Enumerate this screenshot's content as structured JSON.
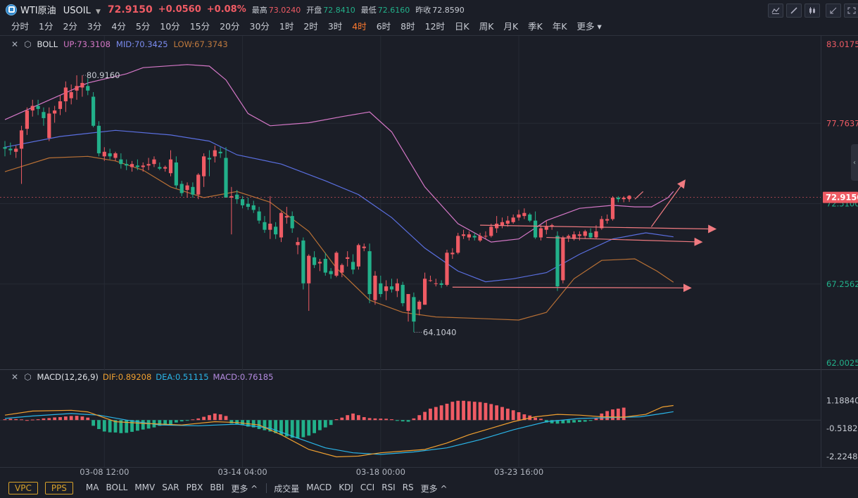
{
  "header": {
    "symbol_name": "WTI原油",
    "symbol_code": "USOIL",
    "price": "72.9150",
    "change": "+0.0560",
    "change_pct": "+0.08%",
    "stats": [
      {
        "label": "最高",
        "value": "73.0240",
        "color": "#ef5b64"
      },
      {
        "label": "开盘",
        "value": "72.8410",
        "color": "#22b08a"
      },
      {
        "label": "最低",
        "value": "72.6160",
        "color": "#22b08a"
      },
      {
        "label": "昨收",
        "value": "72.8590",
        "color": "#c8ccd4"
      }
    ]
  },
  "toolbar_icons": [
    "indicator-icon",
    "draw-icon",
    "candle-type-icon",
    "collapse-icon",
    "fullscreen-icon"
  ],
  "timeframes": [
    "分时",
    "1分",
    "2分",
    "3分",
    "4分",
    "5分",
    "10分",
    "15分",
    "20分",
    "30分",
    "1时",
    "2时",
    "3时",
    "4时",
    "6时",
    "8时",
    "12时",
    "日K",
    "周K",
    "月K",
    "季K",
    "年K",
    "更多"
  ],
  "active_timeframe": "4时",
  "boll": {
    "name": "BOLL",
    "up": "UP:73.3108",
    "mid": "MID:70.3425",
    "low": "LOW:67.3743",
    "colors": {
      "up": "#d678c8",
      "mid": "#5a6fe0",
      "low": "#b87035"
    }
  },
  "macd": {
    "name": "MACD(12,26,9)",
    "dif": "DIF:0.89208",
    "dea": "DEA:0.51115",
    "macd": "MACD:0.76185",
    "colors": {
      "dif": "#f0a030",
      "dea": "#2ab5e8",
      "macd": "#b48be0"
    }
  },
  "price_axis": [
    "83.0175",
    "77.7637",
    "72.5100",
    "67.2562",
    "62.0025"
  ],
  "current_price_label": "72.9150",
  "macd_axis": [
    "1.18840",
    "-0.51823",
    "-2.22486"
  ],
  "time_axis": [
    "03-08 12:00",
    "03-14 04:00",
    "03-18 00:00",
    "03-23 16:00"
  ],
  "annotations": {
    "high": "80.9160",
    "low": "64.1040"
  },
  "bottom": {
    "pills": [
      "VPC",
      "PPS"
    ],
    "main_indicators": [
      "MA",
      "BOLL",
      "MMV",
      "SAR",
      "PBX",
      "BBI",
      "更多 ^"
    ],
    "sub_indicators": [
      "成交量",
      "MACD",
      "KDJ",
      "CCI",
      "RSI",
      "RS",
      "更多 ^"
    ]
  },
  "chart_data": {
    "type": "candlestick",
    "ylim": [
      62.0025,
      83.0175
    ],
    "candles": [
      [
        76.2,
        76.6,
        75.6,
        76.1
      ],
      [
        76.1,
        76.5,
        75.7,
        76.0
      ],
      [
        75.9,
        76.3,
        75.5,
        76.1
      ],
      [
        76.1,
        77.6,
        73.8,
        77.3
      ],
      [
        77.4,
        78.8,
        77.0,
        78.6
      ],
      [
        78.6,
        79.3,
        78.2,
        78.9
      ],
      [
        78.9,
        79.3,
        78.3,
        78.7
      ],
      [
        78.5,
        78.8,
        77.6,
        78.1
      ],
      [
        76.8,
        78.8,
        76.6,
        78.4
      ],
      [
        78.4,
        78.9,
        77.8,
        78.6
      ],
      [
        78.7,
        79.6,
        78.3,
        79.2
      ],
      [
        79.2,
        80.5,
        78.5,
        80.1
      ],
      [
        79.4,
        80.3,
        79.0,
        79.8
      ],
      [
        79.9,
        80.9,
        79.3,
        80.2
      ],
      [
        80.1,
        80.9,
        79.5,
        80.4
      ],
      [
        80.2,
        80.7,
        79.6,
        79.9
      ],
      [
        79.5,
        79.8,
        77.5,
        77.6
      ],
      [
        77.6,
        77.9,
        75.6,
        75.8
      ],
      [
        75.6,
        76.2,
        75.3,
        75.9
      ],
      [
        75.8,
        76.1,
        75.4,
        75.6
      ],
      [
        75.5,
        75.9,
        75.3,
        75.8
      ],
      [
        75.4,
        75.8,
        74.8,
        75.1
      ],
      [
        75.1,
        75.4,
        74.7,
        75.0
      ],
      [
        74.9,
        75.3,
        74.6,
        75.1
      ],
      [
        75.0,
        75.4,
        74.7,
        74.9
      ],
      [
        74.9,
        75.2,
        74.6,
        75.0
      ],
      [
        75.0,
        75.5,
        74.7,
        75.1
      ],
      [
        75.1,
        75.6,
        74.9,
        75.4
      ],
      [
        74.9,
        75.2,
        74.7,
        74.8
      ],
      [
        74.8,
        75.0,
        74.6,
        74.9
      ],
      [
        74.5,
        76.0,
        74.3,
        75.4
      ],
      [
        75.2,
        75.6,
        73.5,
        73.7
      ],
      [
        73.8,
        74.0,
        73.0,
        73.2
      ],
      [
        73.4,
        73.9,
        72.9,
        73.7
      ],
      [
        73.6,
        73.9,
        72.9,
        73.1
      ],
      [
        73.1,
        74.5,
        72.8,
        74.4
      ],
      [
        74.3,
        75.8,
        73.6,
        75.6
      ],
      [
        75.5,
        76.0,
        74.3,
        75.4
      ],
      [
        75.6,
        76.3,
        75.2,
        76.0
      ],
      [
        75.9,
        76.2,
        75.5,
        75.8
      ],
      [
        75.5,
        76.2,
        72.9,
        72.9
      ],
      [
        72.9,
        73.6,
        70.5,
        73.0
      ],
      [
        73.1,
        73.4,
        72.5,
        72.8
      ],
      [
        72.8,
        73.0,
        72.2,
        72.4
      ],
      [
        72.5,
        72.9,
        72.1,
        72.3
      ],
      [
        72.4,
        72.7,
        71.9,
        72.1
      ],
      [
        72.0,
        72.3,
        71.2,
        71.4
      ],
      [
        71.3,
        71.7,
        70.6,
        70.8
      ],
      [
        70.8,
        73.0,
        70.2,
        71.2
      ],
      [
        71.0,
        71.3,
        70.2,
        70.5
      ],
      [
        70.3,
        72.0,
        70.0,
        71.9
      ],
      [
        71.6,
        72.3,
        71.2,
        71.7
      ],
      [
        71.7,
        72.0,
        70.6,
        70.9
      ],
      [
        69.8,
        70.3,
        69.2,
        70.0
      ],
      [
        70.1,
        70.3,
        66.9,
        67.3
      ],
      [
        67.3,
        69.2,
        65.5,
        69.1
      ],
      [
        69.0,
        69.4,
        68.3,
        68.5
      ],
      [
        68.6,
        68.9,
        68.1,
        68.7
      ],
      [
        68.9,
        69.3,
        67.8,
        68.0
      ],
      [
        68.1,
        68.3,
        67.6,
        67.9
      ],
      [
        67.8,
        69.4,
        67.7,
        69.3
      ],
      [
        68.0,
        68.6,
        67.7,
        68.5
      ],
      [
        68.9,
        69.4,
        68.4,
        69.0
      ],
      [
        68.7,
        69.2,
        67.9,
        68.2
      ],
      [
        68.4,
        69.9,
        68.2,
        69.8
      ],
      [
        69.6,
        69.9,
        69.4,
        69.7
      ],
      [
        69.4,
        69.9,
        66.0,
        66.6
      ],
      [
        66.2,
        68.1,
        65.9,
        67.8
      ],
      [
        67.3,
        67.8,
        66.4,
        66.6
      ],
      [
        66.8,
        67.5,
        66.2,
        67.1
      ],
      [
        67.1,
        67.6,
        66.7,
        66.9
      ],
      [
        66.8,
        67.6,
        66.4,
        67.3
      ],
      [
        67.2,
        67.4,
        65.8,
        66.0
      ],
      [
        65.5,
        66.6,
        64.8,
        66.6
      ],
      [
        66.4,
        66.7,
        64.1,
        64.8
      ],
      [
        65.6,
        66.2,
        65.2,
        66.1
      ],
      [
        65.9,
        68.0,
        65.9,
        67.6
      ],
      [
        67.5,
        67.8,
        67.4,
        67.5
      ],
      [
        67.3,
        67.6,
        67.1,
        67.3
      ],
      [
        67.3,
        67.5,
        67.0,
        67.2
      ],
      [
        67.2,
        69.5,
        67.1,
        69.3
      ],
      [
        69.2,
        69.6,
        68.9,
        69.3
      ],
      [
        69.3,
        70.6,
        69.2,
        70.4
      ],
      [
        70.4,
        70.8,
        70.2,
        70.5
      ],
      [
        70.3,
        70.7,
        70.1,
        70.5
      ],
      [
        70.4,
        70.6,
        70.1,
        70.3
      ],
      [
        70.1,
        70.6,
        70.0,
        70.4
      ],
      [
        70.4,
        70.7,
        70.2,
        70.4
      ],
      [
        70.4,
        71.2,
        70.3,
        71.0
      ],
      [
        70.9,
        71.7,
        70.6,
        71.2
      ],
      [
        71.1,
        71.6,
        70.9,
        71.3
      ],
      [
        71.2,
        71.7,
        71.0,
        71.4
      ],
      [
        71.3,
        71.8,
        71.2,
        71.6
      ],
      [
        71.6,
        72.1,
        71.4,
        71.8
      ],
      [
        71.7,
        72.2,
        71.5,
        71.9
      ],
      [
        71.8,
        71.9,
        71.3,
        71.4
      ],
      [
        71.4,
        72.0,
        70.2,
        70.3
      ],
      [
        70.3,
        71.1,
        70.1,
        70.9
      ],
      [
        70.8,
        71.4,
        70.5,
        71.0
      ],
      [
        71.0,
        71.2,
        70.8,
        71.1
      ],
      [
        70.4,
        70.7,
        66.8,
        67.1
      ],
      [
        67.5,
        70.4,
        67.3,
        70.3
      ],
      [
        70.3,
        70.5,
        70.0,
        70.4
      ],
      [
        70.2,
        70.7,
        70.1,
        70.5
      ],
      [
        70.4,
        70.7,
        70.1,
        70.5
      ],
      [
        70.4,
        70.8,
        70.2,
        70.7
      ],
      [
        70.6,
        70.9,
        70.2,
        70.3
      ],
      [
        70.3,
        71.1,
        70.2,
        70.7
      ],
      [
        70.9,
        71.7,
        70.8,
        71.5
      ],
      [
        71.4,
        71.8,
        71.2,
        71.5
      ],
      [
        71.5,
        73.0,
        71.4,
        72.9
      ],
      [
        72.9,
        73.0,
        72.6,
        72.8
      ],
      [
        72.8,
        73.0,
        72.6,
        72.9
      ],
      [
        72.84,
        73.02,
        72.62,
        72.92
      ]
    ],
    "boll_up": [
      [
        0,
        78.0
      ],
      [
        15,
        80.4
      ],
      [
        22,
        81.0
      ],
      [
        25,
        81.4
      ],
      [
        33,
        81.6
      ],
      [
        37,
        81.5
      ],
      [
        40,
        80.6
      ],
      [
        44,
        78.4
      ],
      [
        48,
        77.6
      ],
      [
        55,
        77.8
      ],
      [
        61,
        78.2
      ],
      [
        66,
        78.5
      ],
      [
        70,
        77.2
      ],
      [
        76,
        73.6
      ],
      [
        82,
        71.2
      ],
      [
        88,
        70.0
      ],
      [
        93,
        70.2
      ],
      [
        98,
        71.4
      ],
      [
        104,
        72.2
      ],
      [
        110,
        72.4
      ],
      [
        114,
        72.3
      ],
      [
        117,
        72.3
      ],
      [
        120,
        72.9
      ],
      [
        121,
        73.31
      ]
    ],
    "boll_mid": [
      [
        0,
        76.2
      ],
      [
        10,
        76.9
      ],
      [
        20,
        77.3
      ],
      [
        30,
        77.0
      ],
      [
        37,
        76.6
      ],
      [
        42,
        75.7
      ],
      [
        50,
        75.1
      ],
      [
        58,
        74.0
      ],
      [
        64,
        73.1
      ],
      [
        70,
        71.6
      ],
      [
        76,
        69.6
      ],
      [
        82,
        68.1
      ],
      [
        87,
        67.4
      ],
      [
        92,
        67.6
      ],
      [
        98,
        68.0
      ],
      [
        104,
        69.2
      ],
      [
        110,
        70.2
      ],
      [
        116,
        70.6
      ],
      [
        121,
        70.34
      ]
    ],
    "boll_low": [
      [
        0,
        74.6
      ],
      [
        8,
        75.5
      ],
      [
        15,
        75.6
      ],
      [
        20,
        75.3
      ],
      [
        25,
        74.7
      ],
      [
        30,
        73.6
      ],
      [
        36,
        72.9
      ],
      [
        42,
        73.3
      ],
      [
        48,
        72.6
      ],
      [
        55,
        70.7
      ],
      [
        60,
        68.3
      ],
      [
        66,
        66.2
      ],
      [
        72,
        65.4
      ],
      [
        78,
        65.1
      ],
      [
        86,
        65.0
      ],
      [
        93,
        64.9
      ],
      [
        98,
        65.4
      ],
      [
        103,
        67.6
      ],
      [
        108,
        68.8
      ],
      [
        114,
        68.9
      ],
      [
        118,
        68.1
      ],
      [
        121,
        67.37
      ]
    ],
    "macd_ylim": [
      -2.4,
      1.6
    ],
    "macd_hist": [
      0.05,
      0.08,
      0.06,
      0.04,
      0.0,
      0.03,
      0.05,
      0.1,
      0.12,
      0.16,
      0.18,
      0.22,
      0.25,
      0.26,
      0.22,
      0.15,
      -0.35,
      -0.55,
      -0.7,
      -0.75,
      -0.76,
      -0.8,
      -0.78,
      -0.72,
      -0.65,
      -0.58,
      -0.52,
      -0.45,
      -0.35,
      -0.3,
      -0.25,
      -0.15,
      -0.08,
      -0.02,
      0.04,
      0.1,
      0.2,
      0.3,
      0.4,
      0.35,
      0.25,
      -0.2,
      -0.25,
      -0.3,
      -0.4,
      -0.45,
      -0.55,
      -0.62,
      -0.7,
      -0.8,
      -0.9,
      -1.0,
      -1.08,
      -1.12,
      -1.05,
      -0.95,
      -0.8,
      -0.62,
      -0.45,
      -0.3,
      0.05,
      0.15,
      0.3,
      0.4,
      0.3,
      0.18,
      0.12,
      0.1,
      0.09,
      0.08,
      0.05,
      -0.05,
      -0.08,
      -0.1,
      0.1,
      0.3,
      0.5,
      0.7,
      0.8,
      0.9,
      1.0,
      1.12,
      1.18,
      1.18,
      1.15,
      1.12,
      1.1,
      1.05,
      0.98,
      0.9,
      0.8,
      0.7,
      0.6,
      0.48,
      0.35,
      0.28,
      0.15,
      0.08,
      -0.15,
      -0.2,
      -0.22,
      -0.2,
      -0.18,
      -0.15,
      -0.12,
      -0.1,
      -0.05,
      0.1,
      0.4,
      0.55,
      0.65,
      0.7,
      0.76
    ],
    "macd_dif": [
      [
        0,
        0.3
      ],
      [
        5,
        0.55
      ],
      [
        12,
        0.6
      ],
      [
        15,
        0.5
      ],
      [
        20,
        -0.1
      ],
      [
        25,
        -0.2
      ],
      [
        32,
        -0.3
      ],
      [
        38,
        -0.1
      ],
      [
        42,
        -0.15
      ],
      [
        46,
        -0.3
      ],
      [
        50,
        -0.9
      ],
      [
        55,
        -1.8
      ],
      [
        60,
        -2.25
      ],
      [
        64,
        -2.2
      ],
      [
        68,
        -2.0
      ],
      [
        72,
        -1.9
      ],
      [
        76,
        -1.8
      ],
      [
        80,
        -1.4
      ],
      [
        84,
        -0.9
      ],
      [
        88,
        -0.5
      ],
      [
        92,
        -0.1
      ],
      [
        96,
        0.2
      ],
      [
        100,
        0.35
      ],
      [
        104,
        0.3
      ],
      [
        108,
        0.2
      ],
      [
        112,
        0.18
      ],
      [
        116,
        0.35
      ],
      [
        119,
        0.8
      ],
      [
        121,
        0.89
      ]
    ],
    "macd_dea": [
      [
        0,
        0.1
      ],
      [
        5,
        0.25
      ],
      [
        12,
        0.4
      ],
      [
        17,
        0.3
      ],
      [
        22,
        0.0
      ],
      [
        28,
        -0.3
      ],
      [
        35,
        -0.35
      ],
      [
        42,
        -0.25
      ],
      [
        48,
        -0.5
      ],
      [
        53,
        -1.1
      ],
      [
        58,
        -1.7
      ],
      [
        63,
        -2.0
      ],
      [
        68,
        -2.1
      ],
      [
        74,
        -1.95
      ],
      [
        80,
        -1.7
      ],
      [
        86,
        -1.2
      ],
      [
        92,
        -0.6
      ],
      [
        98,
        -0.1
      ],
      [
        104,
        0.1
      ],
      [
        110,
        0.15
      ],
      [
        115,
        0.2
      ],
      [
        119,
        0.4
      ],
      [
        121,
        0.51
      ]
    ]
  }
}
